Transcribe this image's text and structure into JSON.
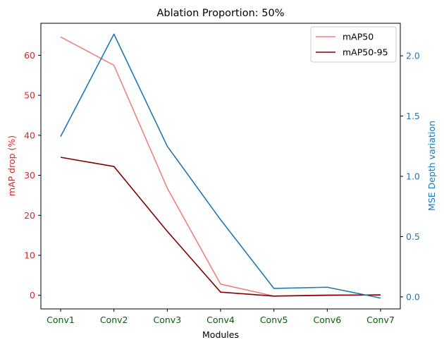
{
  "chart_data": {
    "type": "line",
    "title": "Ablation Proportion: 50%",
    "xlabel": "Modules",
    "ylabel_left": "mAP drop (%)",
    "ylabel_right": "MSE Depth variation",
    "categories": [
      "Conv1",
      "Conv2",
      "Conv3",
      "Conv4",
      "Conv5",
      "Conv6",
      "Conv7"
    ],
    "ylim_left": [
      -3.4,
      68
    ],
    "ylim_right": [
      -0.1,
      2.27
    ],
    "yticks_left": [
      0,
      10,
      20,
      30,
      40,
      50,
      60
    ],
    "yticks_right": [
      0.0,
      0.5,
      1.0,
      1.5,
      2.0
    ],
    "grid": false,
    "legend_position": "top-right",
    "series": [
      {
        "name": "mAP50",
        "axis": "left",
        "color": "#f08080",
        "values": [
          64.6,
          57.5,
          26.8,
          2.8,
          -0.2,
          0.1,
          0.1
        ],
        "in_legend": true
      },
      {
        "name": "mAP50-95",
        "axis": "left",
        "color": "#800000",
        "values": [
          34.5,
          32.2,
          16.0,
          0.8,
          -0.2,
          0.0,
          0.1
        ],
        "in_legend": true
      },
      {
        "name": "",
        "axis": "right",
        "color": "#1f77b4",
        "values": [
          1.33,
          2.18,
          1.25,
          0.64,
          0.07,
          0.08,
          -0.01
        ],
        "in_legend": false
      }
    ],
    "colors": {
      "left_axis": "#d62728",
      "right_axis": "#1f77b4",
      "x_ticks": "#006400"
    }
  }
}
